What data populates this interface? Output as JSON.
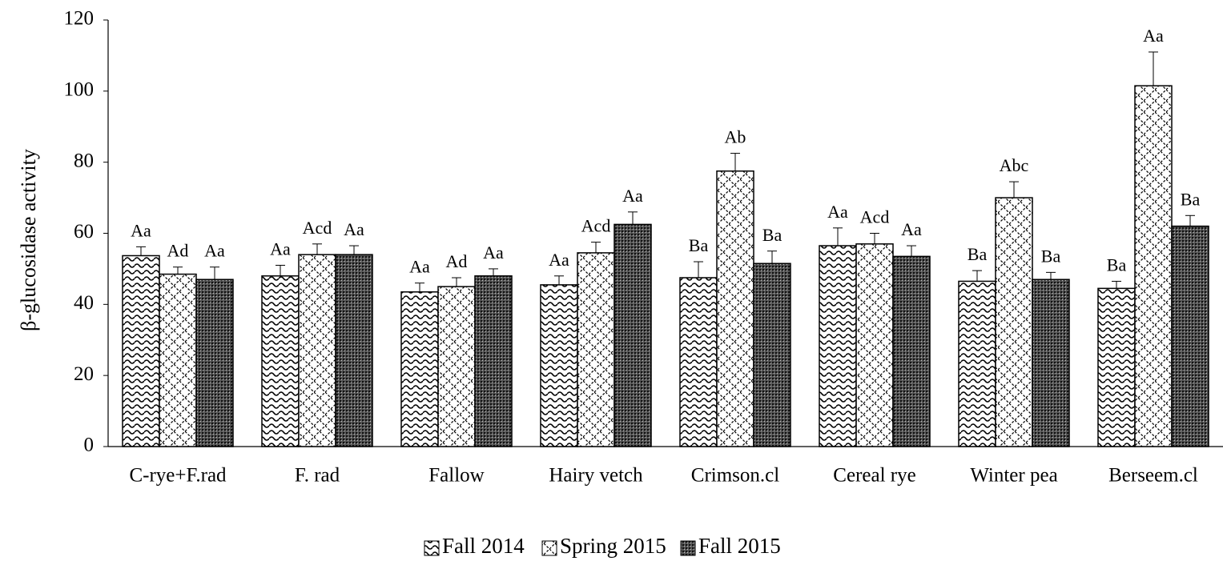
{
  "chart_data": {
    "type": "bar",
    "y_label": "β-glucosidase  activity",
    "categories": [
      "C-rye+F.rad",
      "F. rad",
      "Fallow",
      "Hairy vetch",
      "Crimson.cl",
      "Cereal rye",
      "Winter pea",
      "Berseem.cl"
    ],
    "series": [
      {
        "name": "Fall 2014",
        "color": "#000000",
        "pattern": "wave",
        "values": [
          53.7,
          48,
          43.5,
          45.5,
          47.5,
          56.5,
          46.5,
          44.5
        ],
        "errors": [
          2.5,
          3,
          2.5,
          2.5,
          4.5,
          5,
          3,
          2
        ],
        "letters": [
          "Aa",
          "Aa",
          "Aa",
          "Aa",
          "Ba",
          "Aa",
          "Ba",
          "Ba"
        ]
      },
      {
        "name": "Spring 2015",
        "color": "#000000",
        "pattern": "diagonal",
        "values": [
          48.5,
          54,
          45,
          54.5,
          77.5,
          57,
          70,
          101.5
        ],
        "errors": [
          2,
          3,
          2.5,
          3,
          5,
          3,
          4.5,
          9.5
        ],
        "letters": [
          "Ad",
          "Acd",
          "Ad",
          "Acd",
          "Ab",
          "Acd",
          "Abc",
          "Aa"
        ]
      },
      {
        "name": "Fall 2015",
        "color": "#000000",
        "pattern": "dots",
        "values": [
          47,
          54,
          48,
          62.5,
          51.5,
          53.5,
          47,
          62
        ],
        "errors": [
          3.5,
          2.5,
          2,
          3.5,
          3.5,
          3,
          2,
          3
        ],
        "letters": [
          "Aa",
          "Aa",
          "Aa",
          "Aa",
          "Ba",
          "Aa",
          "Ba",
          "Ba"
        ]
      }
    ],
    "ylim": [
      0,
      120
    ],
    "yticks": [
      0,
      20,
      40,
      60,
      80,
      100,
      120
    ],
    "grid": false,
    "legend": "bottom"
  }
}
